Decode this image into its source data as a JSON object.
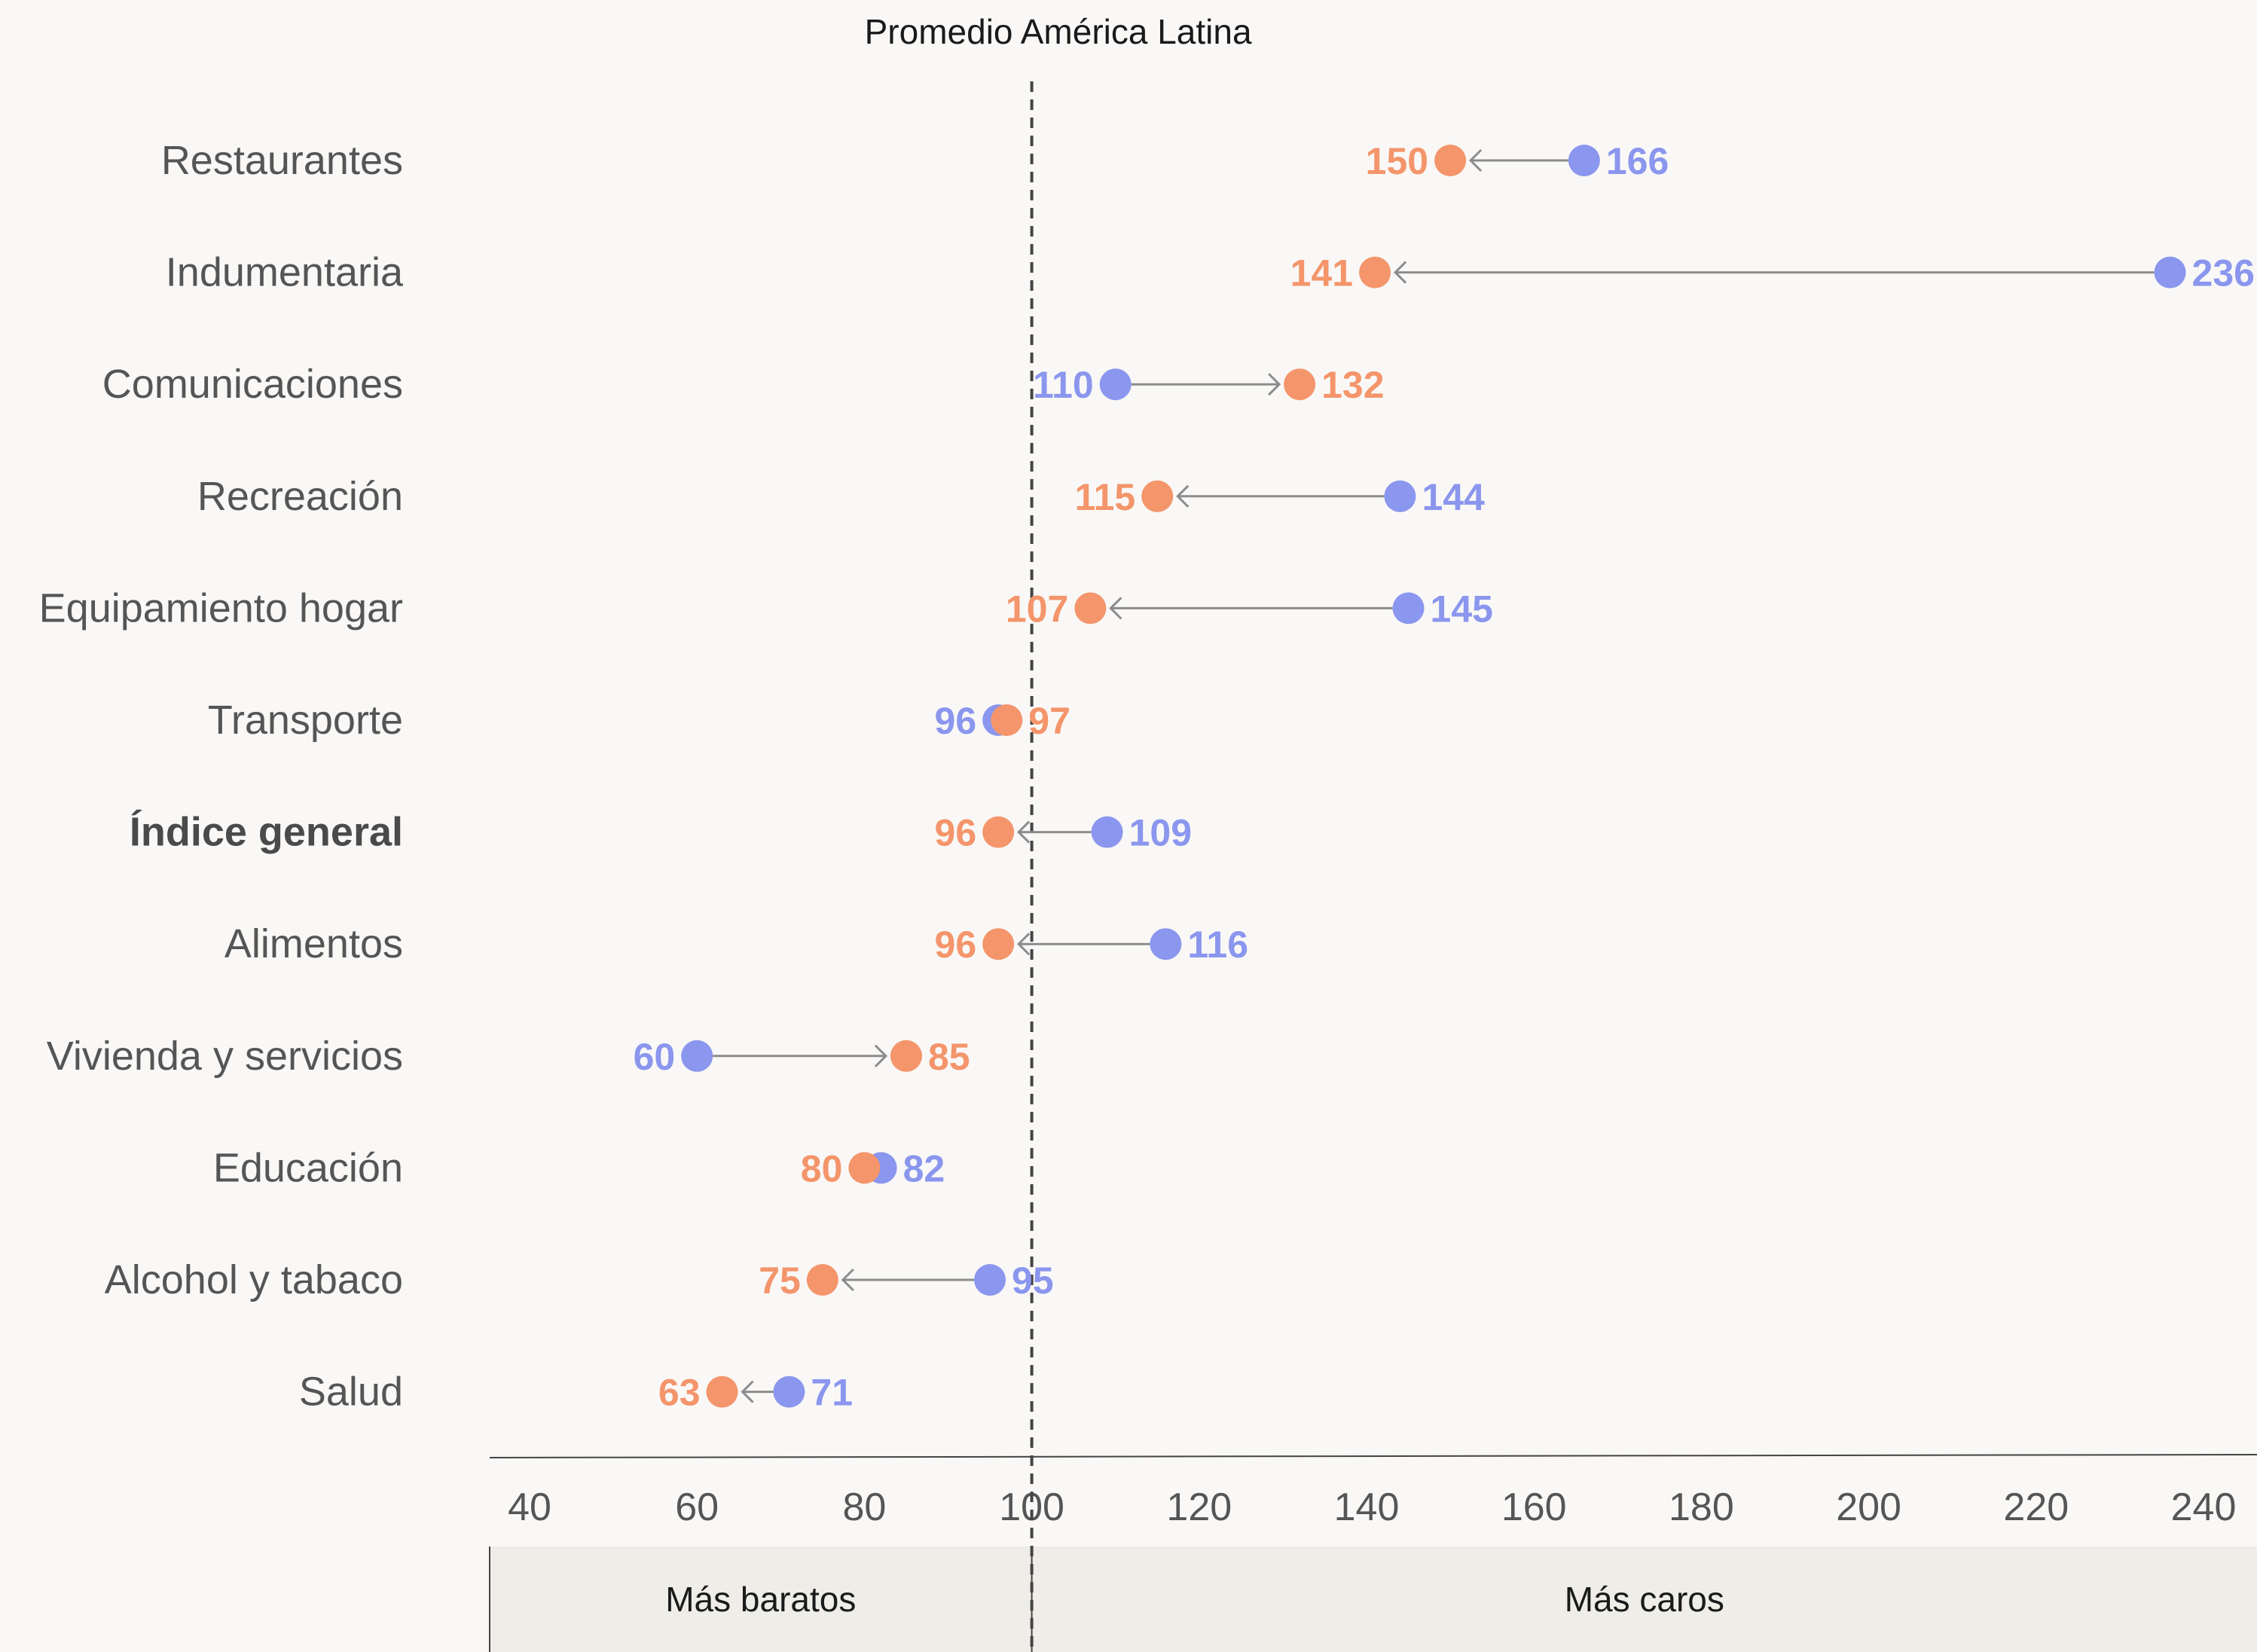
{
  "chart_data": {
    "type": "dumbbell",
    "reference_label": "Promedio América Latina",
    "reference_value": 100,
    "xlim": [
      35,
      246
    ],
    "xticks": [
      40,
      60,
      80,
      100,
      120,
      140,
      160,
      180,
      200,
      220,
      240
    ],
    "bands": [
      {
        "label": "Más baratos",
        "from": 35,
        "to": 100
      },
      {
        "label": "Más caros",
        "from": 100,
        "to": 246
      }
    ],
    "colors": {
      "start": "#8b96ee",
      "end": "#f4956b",
      "arrow": "#8c8c8c",
      "reference": "#444444"
    },
    "rows": [
      {
        "category": "Restaurantes",
        "start": 166,
        "end": 150,
        "start_label": "166",
        "end_label": "150",
        "bold": false
      },
      {
        "category": "Indumentaria",
        "start": 236,
        "end": 141,
        "start_label": "236",
        "end_label": "141",
        "bold": false
      },
      {
        "category": "Comunicaciones",
        "start": 110,
        "end": 132,
        "start_label": "110",
        "end_label": "132",
        "bold": false
      },
      {
        "category": "Recreación",
        "start": 144,
        "end": 115,
        "start_label": "144",
        "end_label": "115",
        "bold": false
      },
      {
        "category": "Equipamiento hogar",
        "start": 145,
        "end": 107,
        "start_label": "145",
        "end_label": "107",
        "bold": false
      },
      {
        "category": "Transporte",
        "start": 96,
        "end": 97,
        "start_label": "96",
        "end_label": "97",
        "bold": false
      },
      {
        "category": "Índice general",
        "start": 109,
        "end": 96,
        "start_label": "109",
        "end_label": "96",
        "bold": true
      },
      {
        "category": "Alimentos",
        "start": 116,
        "end": 96,
        "start_label": "116",
        "end_label": "96",
        "bold": false
      },
      {
        "category": "Vivienda y servicios",
        "start": 60,
        "end": 85,
        "start_label": "60",
        "end_label": "85",
        "bold": false
      },
      {
        "category": "Educación",
        "start": 82,
        "end": 80,
        "start_label": "82",
        "end_label": "80",
        "bold": false
      },
      {
        "category": "Alcohol y tabaco",
        "start": 95,
        "end": 75,
        "start_label": "95",
        "end_label": "75",
        "bold": false
      },
      {
        "category": "Salud",
        "start": 71,
        "end": 63,
        "start_label": "71",
        "end_label": "63",
        "bold": false
      }
    ]
  }
}
